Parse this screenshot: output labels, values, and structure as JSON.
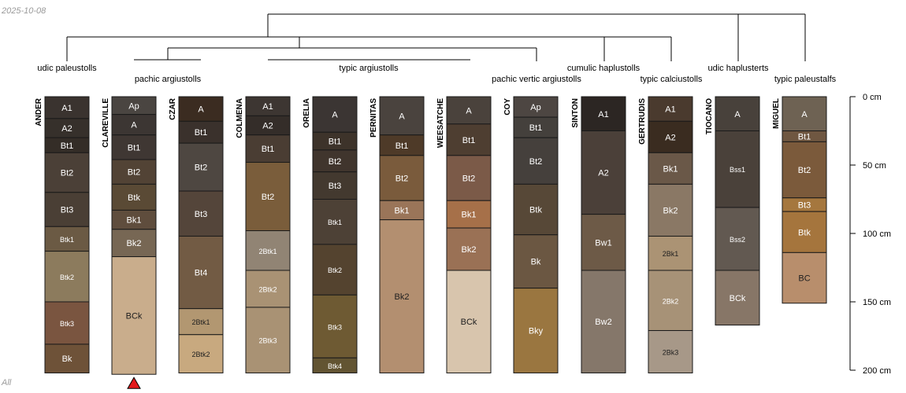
{
  "date_label": "2025-10-08",
  "corner_tag": "All",
  "depth_axis": {
    "unit": "cm",
    "max_depth": 200,
    "ticks": [
      {
        "depth": 0,
        "label": "0 cm"
      },
      {
        "depth": 50,
        "label": "50 cm"
      },
      {
        "depth": 100,
        "label": "100 cm"
      },
      {
        "depth": 150,
        "label": "150 cm"
      },
      {
        "depth": 200,
        "label": "200 cm"
      }
    ]
  },
  "taxa": [
    {
      "key": "udic_paleustolls",
      "label": "udic paleustolls"
    },
    {
      "key": "pachic_argiustolls",
      "label": "pachic argiustolls"
    },
    {
      "key": "typic_argiustolls",
      "label": "typic argiustolls"
    },
    {
      "key": "pachic_vertic_argiustolls",
      "label": "pachic vertic argiustolls"
    },
    {
      "key": "cumulic_haplustolls",
      "label": "cumulic haplustolls"
    },
    {
      "key": "typic_calciustolls",
      "label": "typic calciustolls"
    },
    {
      "key": "udic_haplusterts",
      "label": "udic haplusterts"
    },
    {
      "key": "typic_paleustalfs",
      "label": "typic paleustalfs"
    }
  ],
  "profiles": [
    {
      "name": "ANDER",
      "horizons": [
        {
          "name": "A1",
          "top": 0,
          "bottom": 16,
          "color": "#3a332f"
        },
        {
          "name": "A2",
          "top": 16,
          "bottom": 30,
          "color": "#36302b"
        },
        {
          "name": "Bt1",
          "top": 30,
          "bottom": 41,
          "color": "#342d27"
        },
        {
          "name": "Bt2",
          "top": 41,
          "bottom": 70,
          "color": "#4b4037"
        },
        {
          "name": "Bt3",
          "top": 70,
          "bottom": 95,
          "color": "#4a3f35"
        },
        {
          "name": "Btk1",
          "top": 95,
          "bottom": 113,
          "color": "#6b5a44"
        },
        {
          "name": "Btk2",
          "top": 113,
          "bottom": 150,
          "color": "#8c7b5d"
        },
        {
          "name": "Btk3",
          "top": 150,
          "bottom": 181,
          "color": "#7a5540"
        },
        {
          "name": "Bk",
          "top": 181,
          "bottom": 202,
          "color": "#6e5238"
        }
      ]
    },
    {
      "name": "CLAREVILLE",
      "horizons": [
        {
          "name": "Ap",
          "top": 0,
          "bottom": 13,
          "color": "#4a4541"
        },
        {
          "name": "A",
          "top": 13,
          "bottom": 28,
          "color": "#3c3633"
        },
        {
          "name": "Bt1",
          "top": 28,
          "bottom": 46,
          "color": "#3f3733"
        },
        {
          "name": "Bt2",
          "top": 46,
          "bottom": 64,
          "color": "#524335"
        },
        {
          "name": "Btk",
          "top": 64,
          "bottom": 83,
          "color": "#5a4a35"
        },
        {
          "name": "Bk1",
          "top": 83,
          "bottom": 97,
          "color": "#5f4d3d"
        },
        {
          "name": "Bk2",
          "top": 97,
          "bottom": 117,
          "color": "#776754"
        },
        {
          "name": "BCk",
          "top": 117,
          "bottom": 203,
          "color": "#c9ad8c"
        }
      ]
    },
    {
      "name": "CZAR",
      "horizons": [
        {
          "name": "A",
          "top": 0,
          "bottom": 18,
          "color": "#3b2c21"
        },
        {
          "name": "Bt1",
          "top": 18,
          "bottom": 34,
          "color": "#3a312c"
        },
        {
          "name": "Bt2",
          "top": 34,
          "bottom": 69,
          "color": "#4e4741"
        },
        {
          "name": "Bt3",
          "top": 69,
          "bottom": 102,
          "color": "#54453a"
        },
        {
          "name": "Bt4",
          "top": 102,
          "bottom": 155,
          "color": "#725b44"
        },
        {
          "name": "2Btk1",
          "top": 155,
          "bottom": 174,
          "color": "#b29771"
        },
        {
          "name": "2Btk2",
          "top": 174,
          "bottom": 202,
          "color": "#c8a97f"
        }
      ]
    },
    {
      "name": "COLMENA",
      "horizons": [
        {
          "name": "A1",
          "top": 0,
          "bottom": 14,
          "color": "#3d3632"
        },
        {
          "name": "A2",
          "top": 14,
          "bottom": 28,
          "color": "#342d29"
        },
        {
          "name": "Bt1",
          "top": 28,
          "bottom": 48,
          "color": "#4a3d33"
        },
        {
          "name": "Bt2",
          "top": 48,
          "bottom": 98,
          "color": "#7a5d3b"
        },
        {
          "name": "2Btk1",
          "top": 98,
          "bottom": 127,
          "color": "#918474"
        },
        {
          "name": "2Btk2",
          "top": 127,
          "bottom": 154,
          "color": "#a99274"
        },
        {
          "name": "2Btk3",
          "top": 154,
          "bottom": 202,
          "color": "#a99274"
        }
      ]
    },
    {
      "name": "ORELIA",
      "horizons": [
        {
          "name": "A",
          "top": 0,
          "bottom": 26,
          "color": "#3b3533"
        },
        {
          "name": "Bt1",
          "top": 26,
          "bottom": 39,
          "color": "#3d332a"
        },
        {
          "name": "Bt2",
          "top": 39,
          "bottom": 55,
          "color": "#40352d"
        },
        {
          "name": "Bt3",
          "top": 55,
          "bottom": 75,
          "color": "#43392f"
        },
        {
          "name": "Btk1",
          "top": 75,
          "bottom": 108,
          "color": "#4d4136"
        },
        {
          "name": "Btk2",
          "top": 108,
          "bottom": 145,
          "color": "#54432f"
        },
        {
          "name": "Btk3",
          "top": 145,
          "bottom": 191,
          "color": "#6e5a33"
        },
        {
          "name": "Btk4",
          "top": 191,
          "bottom": 202,
          "color": "#625432"
        }
      ]
    },
    {
      "name": "PERNITAS",
      "horizons": [
        {
          "name": "A",
          "top": 0,
          "bottom": 28,
          "color": "#4a433e"
        },
        {
          "name": "Bt1",
          "top": 28,
          "bottom": 43,
          "color": "#4e3a28"
        },
        {
          "name": "Bt2",
          "top": 43,
          "bottom": 76,
          "color": "#7a5b3c"
        },
        {
          "name": "Bk1",
          "top": 76,
          "bottom": 90,
          "color": "#9a7559"
        },
        {
          "name": "Bk2",
          "top": 90,
          "bottom": 202,
          "color": "#b38f70"
        }
      ]
    },
    {
      "name": "WEESATCHE",
      "horizons": [
        {
          "name": "A",
          "top": 0,
          "bottom": 20,
          "color": "#4a423c"
        },
        {
          "name": "Bt1",
          "top": 20,
          "bottom": 43,
          "color": "#4e3e31"
        },
        {
          "name": "Bt2",
          "top": 43,
          "bottom": 76,
          "color": "#7b5a48"
        },
        {
          "name": "Bk1",
          "top": 76,
          "bottom": 96,
          "color": "#a67049"
        },
        {
          "name": "Bk2",
          "top": 96,
          "bottom": 127,
          "color": "#9a7155"
        },
        {
          "name": "BCk",
          "top": 127,
          "bottom": 202,
          "color": "#d8c5ad"
        }
      ]
    },
    {
      "name": "COY",
      "horizons": [
        {
          "name": "Ap",
          "top": 0,
          "bottom": 15,
          "color": "#4d4642"
        },
        {
          "name": "Bt1",
          "top": 15,
          "bottom": 30,
          "color": "#44403c"
        },
        {
          "name": "Bt2",
          "top": 30,
          "bottom": 64,
          "color": "#45403c"
        },
        {
          "name": "Btk",
          "top": 64,
          "bottom": 101,
          "color": "#574837"
        },
        {
          "name": "Bk",
          "top": 101,
          "bottom": 140,
          "color": "#6b5742"
        },
        {
          "name": "Bky",
          "top": 140,
          "bottom": 202,
          "color": "#9a7640"
        }
      ]
    },
    {
      "name": "SINTON",
      "horizons": [
        {
          "name": "A1",
          "top": 0,
          "bottom": 25,
          "color": "#2c2623"
        },
        {
          "name": "A2",
          "top": 25,
          "bottom": 86,
          "color": "#4b4039"
        },
        {
          "name": "Bw1",
          "top": 86,
          "bottom": 127,
          "color": "#6d5a47"
        },
        {
          "name": "Bw2",
          "top": 127,
          "bottom": 202,
          "color": "#85776a"
        }
      ]
    },
    {
      "name": "GERTRUDIS",
      "horizons": [
        {
          "name": "A1",
          "top": 0,
          "bottom": 18,
          "color": "#4a3a2e"
        },
        {
          "name": "A2",
          "top": 18,
          "bottom": 41,
          "color": "#3a2c20"
        },
        {
          "name": "Bk1",
          "top": 41,
          "bottom": 64,
          "color": "#6a5848"
        },
        {
          "name": "Bk2",
          "top": 64,
          "bottom": 102,
          "color": "#8a7865"
        },
        {
          "name": "2Bk1",
          "top": 102,
          "bottom": 127,
          "color": "#ab9374"
        },
        {
          "name": "2Bk2",
          "top": 127,
          "bottom": 171,
          "color": "#a79277"
        },
        {
          "name": "2Bk3",
          "top": 171,
          "bottom": 202,
          "color": "#a79888"
        }
      ]
    },
    {
      "name": "TIOCANO",
      "horizons": [
        {
          "name": "A",
          "top": 0,
          "bottom": 25,
          "color": "#48413b"
        },
        {
          "name": "Bss1",
          "top": 25,
          "bottom": 81,
          "color": "#4a413a"
        },
        {
          "name": "Bss2",
          "top": 81,
          "bottom": 127,
          "color": "#625951"
        },
        {
          "name": "BCk",
          "top": 127,
          "bottom": 167,
          "color": "#877667"
        }
      ]
    },
    {
      "name": "MIGUEL",
      "horizons": [
        {
          "name": "A",
          "top": 0,
          "bottom": 25,
          "color": "#6e6253"
        },
        {
          "name": "Bt1",
          "top": 25,
          "bottom": 33,
          "color": "#6f5741"
        },
        {
          "name": "Bt2",
          "top": 33,
          "bottom": 74,
          "color": "#7b5a3b"
        },
        {
          "name": "Bt3",
          "top": 74,
          "bottom": 84,
          "color": "#a5773e"
        },
        {
          "name": "Btk",
          "top": 84,
          "bottom": 114,
          "color": "#a5753d"
        },
        {
          "name": "BC",
          "top": 114,
          "bottom": 151,
          "color": "#b88e6c"
        }
      ]
    }
  ],
  "marker": {
    "profile": "CLAREVILLE",
    "shape": "triangle-up",
    "color": "#e31a1c"
  }
}
